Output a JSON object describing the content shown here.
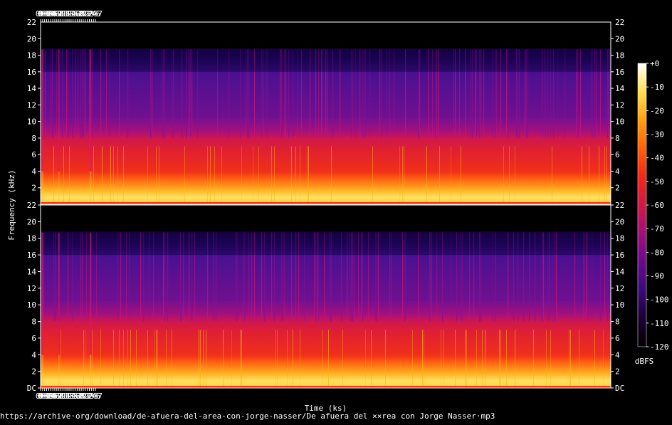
{
  "chart_data": {
    "type": "heatmap",
    "subtype": "spectrogram",
    "channels": 2,
    "x_axis": {
      "label": "Time (ks)",
      "ticks": [
        "0",
        "0·1",
        "0·2",
        "0·3",
        "0·4",
        "0·5",
        "0·6",
        "0·7",
        "0·8",
        "0·9",
        "1",
        "1·1",
        "1·2",
        "1·3",
        "1·4",
        "1·5",
        "1·6",
        "1·7",
        "1·8",
        "1·9",
        "2",
        "2·1",
        "2·2",
        "2·3",
        "2·4",
        "2·5",
        "2·6",
        "2·7"
      ],
      "range_ks": [
        0,
        2.79
      ]
    },
    "y_axis": {
      "label": "Frequency (kHz)",
      "ticks_top": [
        "22",
        "20",
        "18",
        "16",
        "14",
        "12",
        "10",
        "8",
        "6",
        "4",
        "2"
      ],
      "ticks_bottom": [
        "22",
        "20",
        "18",
        "16",
        "14",
        "12",
        "10",
        "8",
        "6",
        "4",
        "2",
        "DC"
      ],
      "range_khz": [
        0,
        22
      ]
    },
    "colorbar": {
      "label": "dBFS",
      "ticks": [
        "+0",
        "-10",
        "-20",
        "-30",
        "-40",
        "-50",
        "-60",
        "-70",
        "-80",
        "-90",
        "-100",
        "-110",
        "-120"
      ],
      "range_db": [
        -120,
        0
      ],
      "colors": [
        "#000000",
        "#1a0033",
        "#3a0a7a",
        "#6a0a8a",
        "#a0107a",
        "#d01848",
        "#f02818",
        "#ff6008",
        "#ffa010",
        "#ffe050",
        "#ffffff"
      ]
    },
    "content_cutoff_khz": 18.7,
    "source": "https://archive·org/download/de-afuera-del-area-con-jorge-nasser/De afuera del ××rea con Jorge Nasser·mp3"
  }
}
